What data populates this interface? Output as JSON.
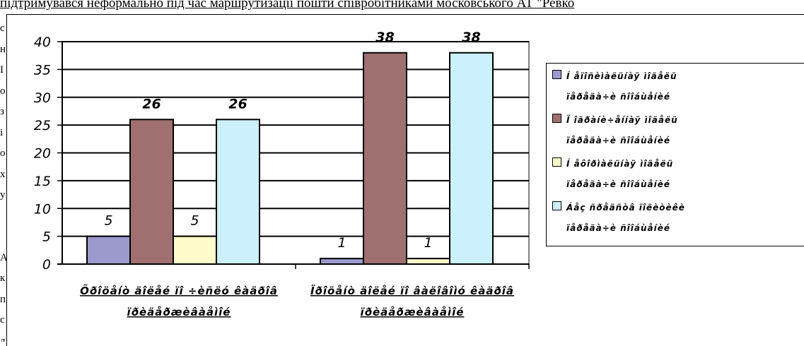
{
  "header_text": "підтримувався неформально під час маршрутизації пошти співробітниками московського АТ \"Ревко",
  "left_fragments": [
    "с",
    "н",
    "І",
    "о",
    "з",
    "і",
    "о",
    "х",
    "у",
    "",
    "",
    "А",
    "к",
    "п",
    "с",
    "д"
  ],
  "colors": {
    "series1": "#9c99cc",
    "series2": "#a07070",
    "series3": "#fffccc",
    "series4": "#ccf0fc"
  },
  "chart_data": {
    "type": "bar",
    "categories": [
      "Õðîöåíò äîëåé ïî ÷èñëó êàäðîâ\nïðèäåðæèâàåìîé",
      "Ïðîöåíò äîëåé ïî âàëîâîìó êàäðîâ\nïðèäåðæèâàåìîé"
    ],
    "series": [
      {
        "name": "Í åïîñèìàëüíàÿ ìîäåëü\nïåðåäà÷è ñîîáùåíèé",
        "values": [
          5,
          1
        ]
      },
      {
        "name": "Ï îãðàíè÷åííàÿ ìîäåëü\nïåðåäà÷è ñîîáùåíèé",
        "values": [
          26,
          38
        ]
      },
      {
        "name": "Í åôîðìàëüíàÿ ìîäåëü\nïåðåäà÷è ñîîáùåíèé",
        "values": [
          5,
          1
        ]
      },
      {
        "name": "Áåç ñðåäñòâ ïîëèòèêè\nïåðåäà÷è ñîîáùåíèé",
        "values": [
          26,
          38
        ]
      }
    ],
    "ylim": [
      0,
      40
    ],
    "yticks": [
      0,
      5,
      10,
      15,
      20,
      25,
      30,
      35,
      40
    ],
    "grid": true,
    "legend": "right",
    "xlabel": "",
    "ylabel": ""
  }
}
